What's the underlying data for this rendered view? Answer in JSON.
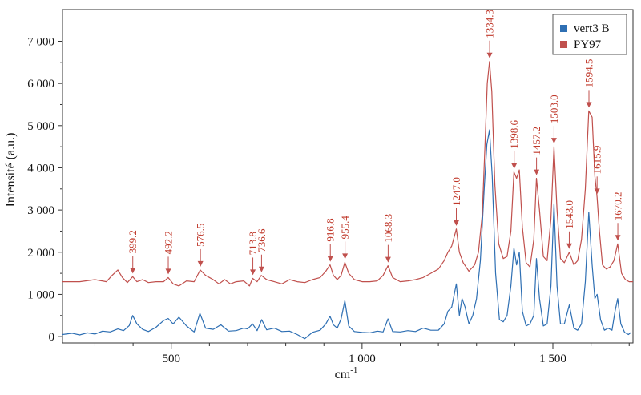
{
  "chart_data": {
    "type": "line",
    "xlabel": "cm",
    "xlabel_sup": "-1",
    "ylabel": "Intensité (a.u.)",
    "xlim": [
      215,
      1710
    ],
    "ylim": [
      -150,
      7750
    ],
    "x_ticks": [
      500,
      1000,
      1500
    ],
    "x_tick_labels": [
      "500",
      "1 000",
      "1 500"
    ],
    "y_ticks": [
      0,
      1000,
      2000,
      3000,
      4000,
      5000,
      6000,
      7000
    ],
    "y_tick_labels": [
      "0",
      "1 000",
      "2 000",
      "3 000",
      "4 000",
      "5 000",
      "6 000",
      "7 000"
    ],
    "legend_position": "top-right",
    "series": [
      {
        "name": "vert3 B",
        "color": "#2e6fb3",
        "x": [
          215,
          240,
          260,
          280,
          300,
          320,
          340,
          360,
          375,
          390,
          399,
          410,
          425,
          440,
          460,
          480,
          492,
          505,
          520,
          540,
          560,
          575,
          590,
          610,
          630,
          650,
          670,
          690,
          700,
          713,
          725,
          737,
          750,
          770,
          790,
          810,
          830,
          850,
          870,
          890,
          905,
          916,
          925,
          935,
          945,
          955,
          965,
          980,
          1000,
          1020,
          1040,
          1055,
          1068,
          1080,
          1100,
          1120,
          1140,
          1160,
          1180,
          1200,
          1215,
          1225,
          1235,
          1247,
          1255,
          1262,
          1270,
          1280,
          1290,
          1300,
          1310,
          1320,
          1327,
          1334,
          1341,
          1350,
          1360,
          1370,
          1380,
          1390,
          1398,
          1405,
          1412,
          1420,
          1430,
          1440,
          1450,
          1457,
          1465,
          1475,
          1485,
          1495,
          1503,
          1511,
          1520,
          1530,
          1543,
          1555,
          1565,
          1575,
          1585,
          1594,
          1603,
          1610,
          1616,
          1625,
          1635,
          1645,
          1655,
          1663,
          1670,
          1678,
          1688,
          1698,
          1705
        ],
        "values": [
          50,
          80,
          40,
          90,
          60,
          130,
          110,
          180,
          140,
          260,
          500,
          300,
          170,
          120,
          220,
          380,
          430,
          300,
          460,
          250,
          110,
          550,
          200,
          170,
          280,
          130,
          140,
          200,
          180,
          300,
          140,
          400,
          160,
          200,
          120,
          130,
          50,
          -50,
          100,
          150,
          300,
          480,
          280,
          200,
          420,
          850,
          250,
          120,
          100,
          90,
          130,
          110,
          420,
          120,
          110,
          140,
          120,
          200,
          150,
          150,
          300,
          600,
          700,
          1250,
          500,
          900,
          700,
          300,
          500,
          900,
          1800,
          3500,
          4550,
          4900,
          3800,
          1500,
          400,
          350,
          500,
          1200,
          2100,
          1700,
          2000,
          600,
          250,
          300,
          500,
          1850,
          900,
          250,
          300,
          1200,
          3150,
          1200,
          300,
          300,
          750,
          200,
          150,
          300,
          1300,
          2950,
          1700,
          900,
          1000,
          400,
          150,
          200,
          150,
          600,
          900,
          300,
          100,
          50,
          100
        ]
      },
      {
        "name": "PY97",
        "color": "#c0504d",
        "x": [
          215,
          260,
          300,
          330,
          345,
          360,
          372,
          385,
          399,
          410,
          425,
          440,
          460,
          480,
          492,
          505,
          520,
          540,
          560,
          576,
          590,
          610,
          625,
          640,
          655,
          670,
          690,
          705,
          713,
          725,
          736,
          750,
          770,
          790,
          810,
          830,
          850,
          870,
          890,
          905,
          916,
          925,
          935,
          945,
          955,
          965,
          980,
          1000,
          1020,
          1040,
          1055,
          1068,
          1080,
          1100,
          1120,
          1140,
          1160,
          1180,
          1200,
          1215,
          1225,
          1235,
          1247,
          1255,
          1265,
          1280,
          1295,
          1305,
          1315,
          1322,
          1328,
          1334,
          1340,
          1348,
          1358,
          1370,
          1380,
          1390,
          1398,
          1405,
          1412,
          1420,
          1430,
          1440,
          1450,
          1457,
          1465,
          1475,
          1485,
          1495,
          1503,
          1511,
          1520,
          1530,
          1543,
          1555,
          1565,
          1575,
          1585,
          1594,
          1603,
          1610,
          1616,
          1622,
          1630,
          1640,
          1650,
          1660,
          1670,
          1680,
          1690,
          1700,
          1710
        ],
        "values": [
          1300,
          1300,
          1350,
          1300,
          1450,
          1580,
          1400,
          1280,
          1420,
          1300,
          1350,
          1280,
          1300,
          1300,
          1400,
          1250,
          1200,
          1320,
          1300,
          1580,
          1450,
          1350,
          1250,
          1350,
          1250,
          1300,
          1320,
          1200,
          1380,
          1300,
          1450,
          1350,
          1300,
          1250,
          1350,
          1300,
          1280,
          1350,
          1400,
          1550,
          1700,
          1450,
          1350,
          1450,
          1760,
          1500,
          1350,
          1300,
          1300,
          1320,
          1450,
          1680,
          1400,
          1300,
          1320,
          1350,
          1400,
          1500,
          1600,
          1800,
          2000,
          2150,
          2550,
          2000,
          1750,
          1550,
          1700,
          2000,
          2900,
          4500,
          6000,
          6520,
          5800,
          3600,
          2200,
          1850,
          1900,
          2500,
          3900,
          3750,
          3950,
          2600,
          1750,
          1650,
          2300,
          3750,
          3000,
          1900,
          1800,
          2800,
          4500,
          3000,
          1850,
          1750,
          2000,
          1700,
          1800,
          2300,
          3500,
          5350,
          5200,
          3800,
          3300,
          2500,
          1700,
          1600,
          1650,
          1800,
          2200,
          1500,
          1350,
          1300,
          1300
        ]
      }
    ],
    "annotations": [
      {
        "label": "399.2",
        "x": 399.2,
        "y": 1420
      },
      {
        "label": "492.2",
        "x": 492.2,
        "y": 1400
      },
      {
        "label": "576.5",
        "x": 576.5,
        "y": 1580
      },
      {
        "label": "713.8",
        "x": 713.8,
        "y": 1380
      },
      {
        "label": "736.6",
        "x": 736.6,
        "y": 1450
      },
      {
        "label": "916.8",
        "x": 916.8,
        "y": 1700
      },
      {
        "label": "955.4",
        "x": 955.4,
        "y": 1760
      },
      {
        "label": "1068.3",
        "x": 1068.3,
        "y": 1680
      },
      {
        "label": "1247.0",
        "x": 1247.0,
        "y": 2550
      },
      {
        "label": "1334.3",
        "x": 1334.3,
        "y": 6520
      },
      {
        "label": "1398.6",
        "x": 1398.6,
        "y": 3900
      },
      {
        "label": "1457.2",
        "x": 1457.2,
        "y": 3750
      },
      {
        "label": "1503.0",
        "x": 1503.0,
        "y": 4500
      },
      {
        "label": "1543.0",
        "x": 1543.0,
        "y": 2000
      },
      {
        "label": "1594.5",
        "x": 1594.5,
        "y": 5350
      },
      {
        "label": "1615.9",
        "x": 1615.9,
        "y": 3300
      },
      {
        "label": "1670.2",
        "x": 1670.2,
        "y": 2200
      }
    ]
  }
}
